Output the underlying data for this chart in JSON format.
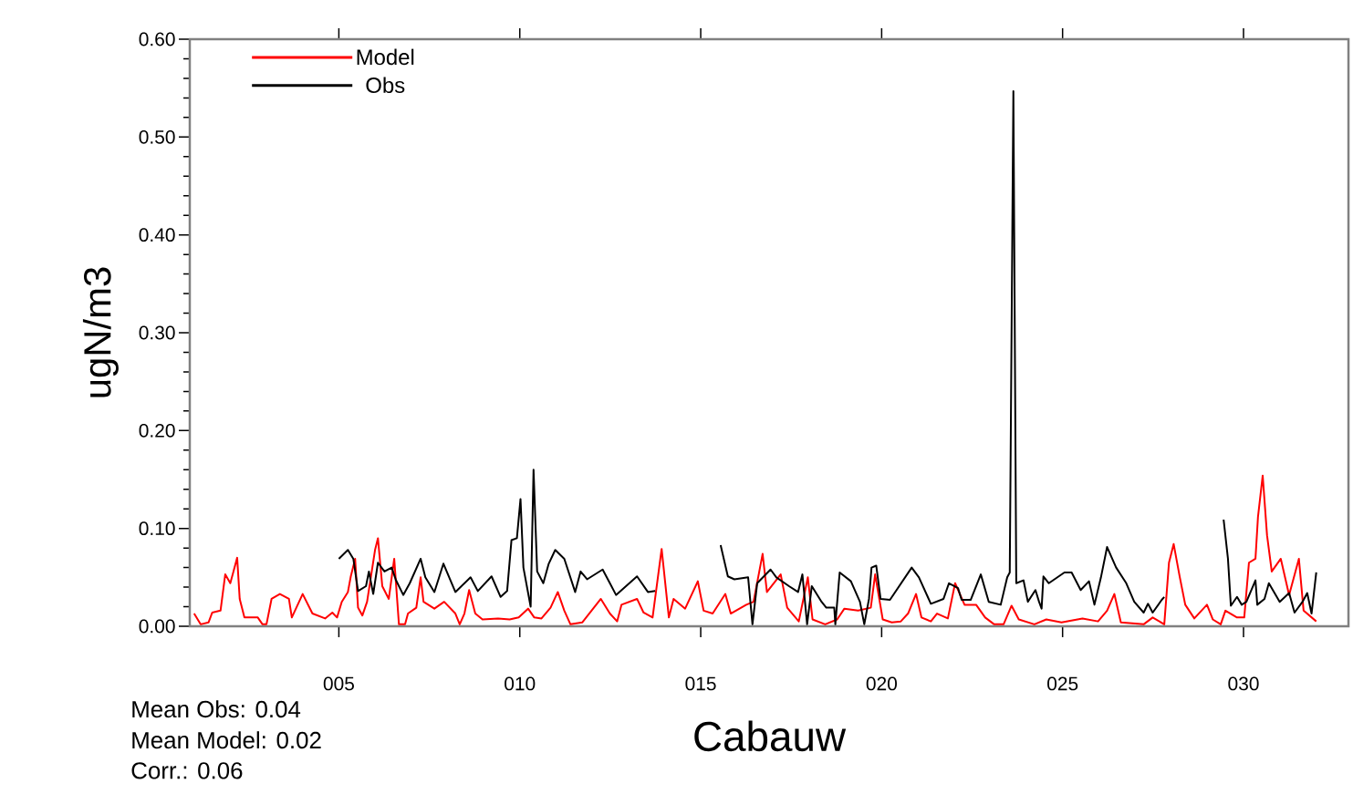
{
  "chart_data": {
    "type": "line",
    "xlabel": "Cabauw",
    "ylabel": "ugN/m3",
    "xlim": [
      0.88,
      32.9
    ],
    "ylim": [
      0,
      0.6
    ],
    "xticks": [
      {
        "value": 5,
        "label": "005"
      },
      {
        "value": 10,
        "label": "010"
      },
      {
        "value": 15,
        "label": "015"
      },
      {
        "value": 20,
        "label": "020"
      },
      {
        "value": 25,
        "label": "025"
      },
      {
        "value": 30,
        "label": "030"
      }
    ],
    "yticks": [
      {
        "value": 0,
        "label": "0.00"
      },
      {
        "value": 0.1,
        "label": "0.10"
      },
      {
        "value": 0.2,
        "label": "0.20"
      },
      {
        "value": 0.3,
        "label": "0.30"
      },
      {
        "value": 0.4,
        "label": "0.40"
      },
      {
        "value": 0.5,
        "label": "0.50"
      },
      {
        "value": 0.6,
        "label": "0.60"
      }
    ],
    "legend": "top left",
    "marker": "none",
    "line_style": "solid",
    "annotations": [
      "Mean Obs: 0.04",
      "Mean Model: 0.02",
      "Corr.: 0.06"
    ],
    "series": [
      {
        "name": "Model",
        "color": "#ff0000",
        "x": [
          1.0,
          1.18,
          1.4,
          1.5,
          1.73,
          1.86,
          2.0,
          2.19,
          2.26,
          2.39,
          2.76,
          2.89,
          3.0,
          3.14,
          3.37,
          3.62,
          3.7,
          4.0,
          4.27,
          4.62,
          4.82,
          4.95,
          5.08,
          5.25,
          5.33,
          5.45,
          5.53,
          5.65,
          5.78,
          6.0,
          6.08,
          6.2,
          6.38,
          6.53,
          6.66,
          6.83,
          6.91,
          7.14,
          7.26,
          7.34,
          7.64,
          7.91,
          8.22,
          8.34,
          8.47,
          8.6,
          8.77,
          8.97,
          9.4,
          9.72,
          9.97,
          10.23,
          10.4,
          10.6,
          10.85,
          11.05,
          11.23,
          11.4,
          11.73,
          12.24,
          12.49,
          12.69,
          12.81,
          13.24,
          13.42,
          13.67,
          13.92,
          14.12,
          14.25,
          14.57,
          14.92,
          15.08,
          15.33,
          15.68,
          15.83,
          16.26,
          16.46,
          16.71,
          16.83,
          17.21,
          17.39,
          17.71,
          17.96,
          18.09,
          18.44,
          18.77,
          18.97,
          19.35,
          19.7,
          19.82,
          20.03,
          20.28,
          20.53,
          20.73,
          20.95,
          21.1,
          21.36,
          21.53,
          21.83,
          22.03,
          22.29,
          22.61,
          22.86,
          23.11,
          23.37,
          23.59,
          23.79,
          24.22,
          24.55,
          24.97,
          25.55,
          25.98,
          26.23,
          26.43,
          26.61,
          27.24,
          27.49,
          27.81,
          27.94,
          28.07,
          28.24,
          28.39,
          28.64,
          28.99,
          29.15,
          29.37,
          29.5,
          29.82,
          30.02,
          30.15,
          30.33,
          30.4,
          30.53,
          30.65,
          30.78,
          31.03,
          31.26,
          31.53,
          31.66,
          32.01
        ],
        "values": [
          0.013,
          0.002,
          0.004,
          0.014,
          0.016,
          0.053,
          0.044,
          0.07,
          0.028,
          0.009,
          0.009,
          0.002,
          0.002,
          0.028,
          0.033,
          0.028,
          0.009,
          0.033,
          0.013,
          0.008,
          0.014,
          0.009,
          0.025,
          0.035,
          0.051,
          0.069,
          0.019,
          0.011,
          0.025,
          0.078,
          0.09,
          0.041,
          0.028,
          0.069,
          0.002,
          0.002,
          0.013,
          0.019,
          0.05,
          0.025,
          0.018,
          0.025,
          0.013,
          0.002,
          0.013,
          0.037,
          0.013,
          0.007,
          0.008,
          0.007,
          0.009,
          0.018,
          0.009,
          0.008,
          0.019,
          0.035,
          0.016,
          0.002,
          0.004,
          0.028,
          0.013,
          0.005,
          0.022,
          0.028,
          0.014,
          0.009,
          0.079,
          0.009,
          0.028,
          0.018,
          0.046,
          0.016,
          0.013,
          0.033,
          0.013,
          0.022,
          0.025,
          0.074,
          0.035,
          0.053,
          0.019,
          0.005,
          0.05,
          0.007,
          0.002,
          0.007,
          0.018,
          0.016,
          0.019,
          0.053,
          0.007,
          0.004,
          0.005,
          0.013,
          0.033,
          0.009,
          0.005,
          0.013,
          0.008,
          0.044,
          0.022,
          0.022,
          0.009,
          0.002,
          0.002,
          0.021,
          0.007,
          0.002,
          0.007,
          0.004,
          0.008,
          0.005,
          0.016,
          0.033,
          0.004,
          0.002,
          0.009,
          0.002,
          0.065,
          0.084,
          0.05,
          0.022,
          0.008,
          0.022,
          0.007,
          0.002,
          0.016,
          0.009,
          0.009,
          0.065,
          0.069,
          0.112,
          0.154,
          0.093,
          0.056,
          0.069,
          0.032,
          0.069,
          0.016,
          0.005
        ]
      },
      {
        "name": "Obs",
        "color": "#000000",
        "x": [
          5.0,
          5.25,
          5.4,
          5.53,
          5.75,
          5.83,
          5.95,
          6.08,
          6.26,
          6.46,
          6.58,
          6.78,
          6.96,
          7.26,
          7.39,
          7.64,
          7.89,
          8.22,
          8.64,
          8.84,
          9.22,
          9.47,
          9.65,
          9.77,
          9.92,
          10.02,
          10.1,
          10.3,
          10.38,
          10.48,
          10.65,
          10.8,
          10.98,
          11.23,
          11.53,
          11.68,
          11.86,
          12.29,
          12.49,
          12.66,
          13.24,
          13.54,
          13.74,
          14.6,
          15.55,
          15.75,
          15.93,
          16.31,
          16.43,
          16.56,
          16.93,
          17.09,
          17.44,
          17.69,
          17.81,
          17.94,
          18.07,
          18.34,
          18.47,
          18.69,
          18.72,
          18.84,
          19.15,
          19.4,
          19.52,
          19.65,
          19.72,
          19.85,
          19.97,
          20.23,
          20.83,
          21.03,
          21.36,
          21.71,
          21.86,
          22.11,
          22.21,
          22.46,
          22.74,
          22.96,
          23.29,
          23.47,
          23.54,
          23.64,
          23.72,
          23.92,
          24.04,
          24.25,
          24.35,
          24.42,
          24.47,
          24.62,
          25.05,
          25.25,
          25.5,
          25.73,
          25.88,
          26.06,
          26.23,
          26.48,
          26.76,
          26.98,
          27.24,
          27.36,
          27.49,
          27.74,
          27.81,
          28.6,
          29.45,
          29.57,
          29.65,
          29.82,
          29.95,
          30.08,
          30.33,
          30.38,
          30.58,
          30.7,
          31.0,
          31.26,
          31.41,
          31.63,
          31.76,
          31.88,
          32.01
        ],
        "values": [
          0.069,
          0.078,
          0.069,
          0.036,
          0.041,
          0.056,
          0.033,
          0.065,
          0.056,
          0.06,
          0.047,
          0.032,
          0.044,
          0.069,
          0.05,
          0.035,
          0.064,
          0.035,
          0.05,
          0.036,
          0.051,
          0.03,
          0.036,
          0.088,
          0.09,
          0.13,
          0.06,
          0.02,
          0.16,
          0.056,
          0.044,
          0.064,
          0.078,
          0.069,
          0.035,
          0.056,
          0.048,
          0.058,
          0.044,
          0.032,
          0.051,
          0.035,
          0.036,
          null,
          0.083,
          0.051,
          0.048,
          0.05,
          0.002,
          0.044,
          0.058,
          0.05,
          0.041,
          0.035,
          0.053,
          0.002,
          0.041,
          0.025,
          0.019,
          0.019,
          0.002,
          0.055,
          0.046,
          0.025,
          0.002,
          0.028,
          0.06,
          0.062,
          0.028,
          0.027,
          0.06,
          0.05,
          0.023,
          0.028,
          0.044,
          0.039,
          0.027,
          0.027,
          0.053,
          0.025,
          0.022,
          0.05,
          0.055,
          0.547,
          0.044,
          0.047,
          0.025,
          0.037,
          0.025,
          0.018,
          0.051,
          0.044,
          0.055,
          0.055,
          0.037,
          0.046,
          0.022,
          0.05,
          0.081,
          0.06,
          0.044,
          0.025,
          0.014,
          0.023,
          0.014,
          0.027,
          0.03,
          null,
          0.109,
          0.069,
          0.021,
          0.03,
          0.022,
          0.025,
          0.047,
          0.022,
          0.028,
          0.044,
          0.025,
          0.034,
          0.014,
          0.025,
          0.034,
          0.013,
          0.055
        ]
      }
    ]
  }
}
